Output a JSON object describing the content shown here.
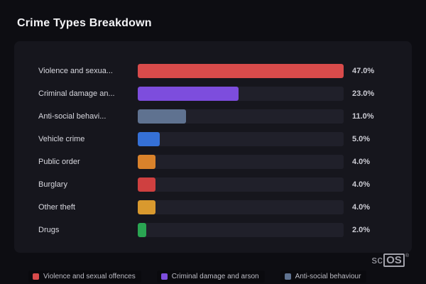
{
  "page": {
    "background": "#0d0d12"
  },
  "chart_data": {
    "type": "bar",
    "orientation": "horizontal",
    "title": "Crime Types Breakdown",
    "categories": [
      "Violence and sexua...",
      "Criminal damage an...",
      "Anti-social behavi...",
      "Vehicle crime",
      "Public order",
      "Burglary",
      "Other theft",
      "Drugs"
    ],
    "values": [
      47.0,
      23.0,
      11.0,
      5.0,
      4.0,
      4.0,
      4.0,
      2.0
    ],
    "value_labels": [
      "47.0%",
      "23.0%",
      "11.0%",
      "5.0%",
      "4.0%",
      "4.0%",
      "4.0%",
      "2.0%"
    ],
    "colors": [
      "#d84b4b",
      "#7d4ddd",
      "#5f7290",
      "#3570d6",
      "#d9822b",
      "#cf4040",
      "#d9992e",
      "#2aa552"
    ],
    "xlim": [
      0,
      47
    ],
    "grid": false,
    "legend_position": "bottom",
    "legend": [
      {
        "label": "Violence and sexual offences",
        "color": "#d84b4b"
      },
      {
        "label": "Criminal damage and arson",
        "color": "#7d4ddd"
      },
      {
        "label": "Anti-social behaviour",
        "color": "#5f7290"
      }
    ]
  },
  "branding": {
    "prefix": "sc",
    "suffix": "OS",
    "reg": "®"
  }
}
